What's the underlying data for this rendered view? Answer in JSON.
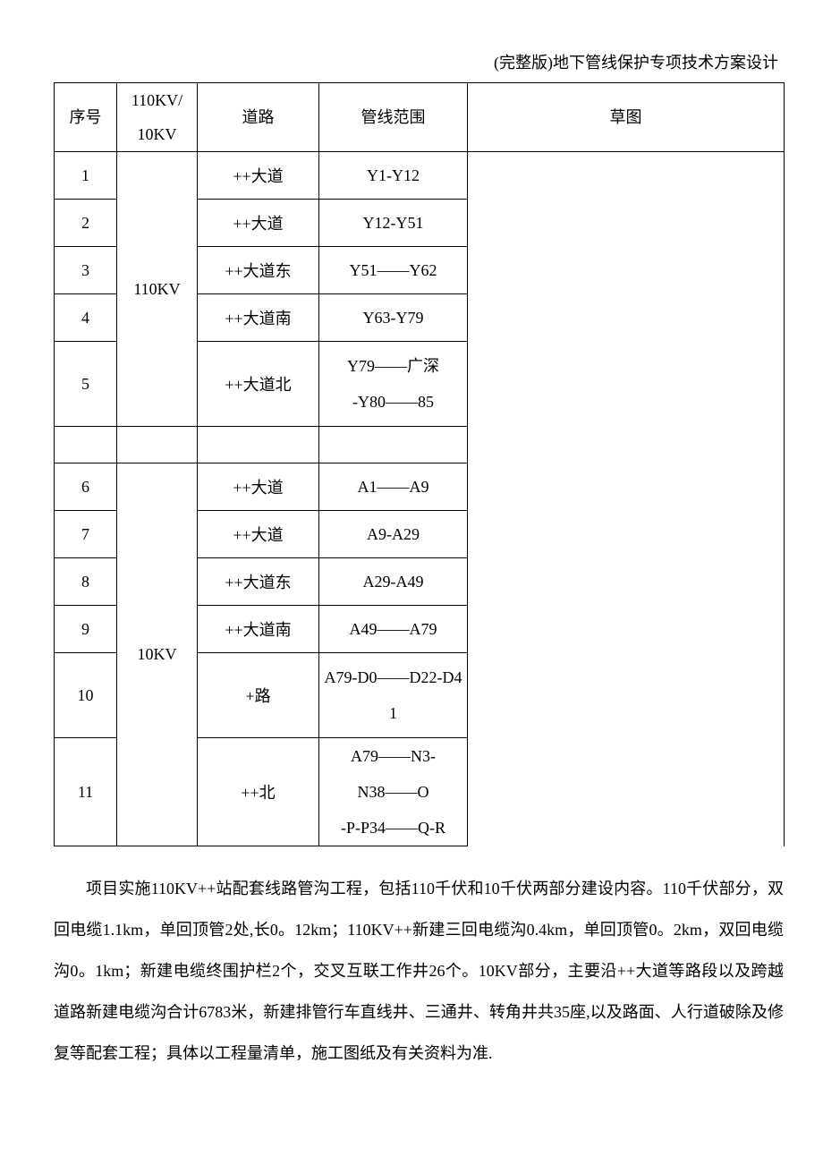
{
  "header_title": "(完整版)地下管线保护专项技术方案设计",
  "columns": {
    "seq": "序号",
    "kv": "110KV/\n10KV",
    "road": "道路",
    "range": "管线范围",
    "sketch": "草图"
  },
  "group1_kv": "110KV",
  "group2_kv": "10KV",
  "rows1": [
    {
      "seq": "1",
      "road": "++大道",
      "range": "Y1-Y12"
    },
    {
      "seq": "2",
      "road": "++大道",
      "range": "Y12-Y51"
    },
    {
      "seq": "3",
      "road": "++大道东",
      "range": "Y51――Y62"
    },
    {
      "seq": "4",
      "road": "++大道南",
      "range": "Y63-Y79"
    },
    {
      "seq": "5",
      "road": "++大道北",
      "range": "Y79――广深\n-Y80――85"
    }
  ],
  "rows2": [
    {
      "seq": "6",
      "road": "++大道",
      "range": "A1――A9"
    },
    {
      "seq": "7",
      "road": "++大道",
      "range": "A9-A29"
    },
    {
      "seq": "8",
      "road": "++大道东",
      "range": "A29-A49"
    },
    {
      "seq": "9",
      "road": "++大道南",
      "range": "A49――A79"
    },
    {
      "seq": "10",
      "road": "+路",
      "range": "A79-D0――D22-D4\n1"
    },
    {
      "seq": "11",
      "road": "++北",
      "range": "A79――N3-N38――O\n-P-P34――Q-R"
    }
  ],
  "paragraph": "项目实施110KV++站配套线路管沟工程，包括110千伏和10千伏两部分建设内容。110千伏部分，双回电缆1.1km，单回顶管2处,长0。12km；110KV++新建三回电缆沟0.4km，单回顶管0。2km，双回电缆沟0。1km；新建电缆终围护栏2个，交叉互联工作井26个。10KV部分，主要沿++大道等路段以及跨越道路新建电缆沟合计6783米，新建排管行车直线井、三通井、转角井共35座,以及路面、人行道破除及修复等配套工程；具体以工程量清单，施工图纸及有关资料为准."
}
